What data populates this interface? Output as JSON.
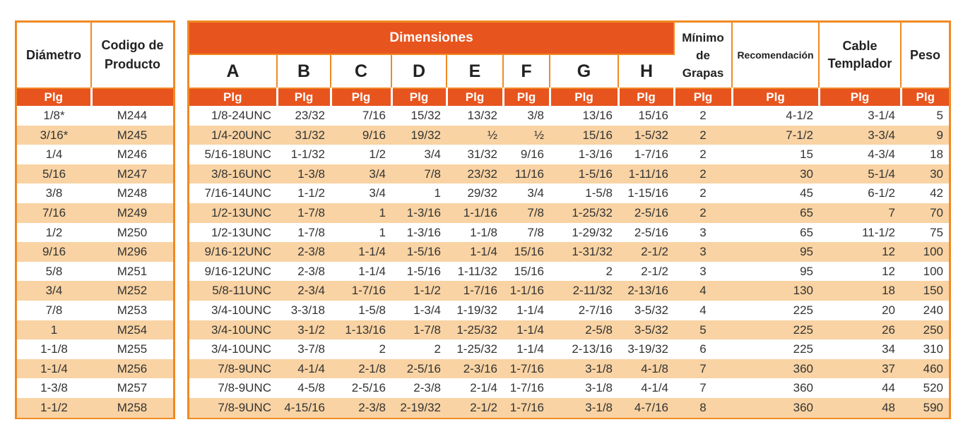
{
  "colors": {
    "header": "#e8541e",
    "border": "#f08a24",
    "alt_row": "#f9d3a3"
  },
  "left": {
    "headers": [
      "Diámetro",
      "Codigo de Producto"
    ],
    "unit_row": [
      "Plg",
      ""
    ],
    "rows": [
      [
        "1/8*",
        "M244"
      ],
      [
        "3/16*",
        "M245"
      ],
      [
        "1/4",
        "M246"
      ],
      [
        "5/16",
        "M247"
      ],
      [
        "3/8",
        "M248"
      ],
      [
        "7/16",
        "M249"
      ],
      [
        "1/2",
        "M250"
      ],
      [
        "9/16",
        "M296"
      ],
      [
        "5/8",
        "M251"
      ],
      [
        "3/4",
        "M252"
      ],
      [
        "7/8",
        "M253"
      ],
      [
        "1",
        "M254"
      ],
      [
        "1-1/8",
        "M255"
      ],
      [
        "1-1/4",
        "M256"
      ],
      [
        "1-3/8",
        "M257"
      ],
      [
        "1-1/2",
        "M258"
      ]
    ]
  },
  "right": {
    "group_header": "Dimensiones",
    "letters": [
      "A",
      "B",
      "C",
      "D",
      "E",
      "F",
      "G",
      "H"
    ],
    "extra_headers": [
      "Mínimo de Grapas",
      "Recomendación",
      "Cable Templador",
      "Peso"
    ],
    "unit_row": [
      "Plg",
      "Plg",
      "Plg",
      "Plg",
      "Plg",
      "Plg",
      "Plg",
      "Plg",
      "Plg",
      "Plg",
      "Plg",
      "Plg"
    ],
    "rows": [
      [
        "1/8-24UNC",
        "23/32",
        "7/16",
        "15/32",
        "13/32",
        "3/8",
        "13/16",
        "15/16",
        "2",
        "4-1/2",
        "3-1/4",
        "5"
      ],
      [
        "1/4-20UNC",
        "31/32",
        "9/16",
        "19/32",
        "½",
        "½",
        "15/16",
        "1-5/32",
        "2",
        "7-1/2",
        "3-3/4",
        "9"
      ],
      [
        "5/16-18UNC",
        "1-1/32",
        "1/2",
        "3/4",
        "31/32",
        "9/16",
        "1-3/16",
        "1-7/16",
        "2",
        "15",
        "4-3/4",
        "18"
      ],
      [
        "3/8-16UNC",
        "1-3/8",
        "3/4",
        "7/8",
        "23/32",
        "11/16",
        "1-5/16",
        "1-11/16",
        "2",
        "30",
        "5-1/4",
        "30"
      ],
      [
        "7/16-14UNC",
        "1-1/2",
        "3/4",
        "1",
        "29/32",
        "3/4",
        "1-5/8",
        "1-15/16",
        "2",
        "45",
        "6-1/2",
        "42"
      ],
      [
        "1/2-13UNC",
        "1-7/8",
        "1",
        "1-3/16",
        "1-1/16",
        "7/8",
        "1-25/32",
        "2-5/16",
        "2",
        "65",
        "7",
        "70"
      ],
      [
        "1/2-13UNC",
        "1-7/8",
        "1",
        "1-3/16",
        "1-1/8",
        "7/8",
        "1-29/32",
        "2-5/16",
        "3",
        "65",
        "11-1/2",
        "75"
      ],
      [
        "9/16-12UNC",
        "2-3/8",
        "1-1/4",
        "1-5/16",
        "1-1/4",
        "15/16",
        "1-31/32",
        "2-1/2",
        "3",
        "95",
        "12",
        "100"
      ],
      [
        "9/16-12UNC",
        "2-3/8",
        "1-1/4",
        "1-5/16",
        "1-11/32",
        "15/16",
        "2",
        "2-1/2",
        "3",
        "95",
        "12",
        "100"
      ],
      [
        "5/8-11UNC",
        "2-3/4",
        "1-7/16",
        "1-1/2",
        "1-7/16",
        "1-1/16",
        "2-11/32",
        "2-13/16",
        "4",
        "130",
        "18",
        "150"
      ],
      [
        "3/4-10UNC",
        "3-3/18",
        "1-5/8",
        "1-3/4",
        "1-19/32",
        "1-1/4",
        "2-7/16",
        "3-5/32",
        "4",
        "225",
        "20",
        "240"
      ],
      [
        "3/4-10UNC",
        "3-1/2",
        "1-13/16",
        "1-7/8",
        "1-25/32",
        "1-1/4",
        "2-5/8",
        "3-5/32",
        "5",
        "225",
        "26",
        "250"
      ],
      [
        "3/4-10UNC",
        "3-7/8",
        "2",
        "2",
        "1-25/32",
        "1-1/4",
        "2-13/16",
        "3-19/32",
        "6",
        "225",
        "34",
        "310"
      ],
      [
        "7/8-9UNC",
        "4-1/4",
        "2-1/8",
        "2-5/16",
        "2-3/16",
        "1-7/16",
        "3-1/8",
        "4-1/8",
        "7",
        "360",
        "37",
        "460"
      ],
      [
        "7/8-9UNC",
        "4-5/8",
        "2-5/16",
        "2-3/8",
        "2-1/4",
        "1-7/16",
        "3-1/8",
        "4-1/4",
        "7",
        "360",
        "44",
        "520"
      ],
      [
        "7/8-9UNC",
        "4-15/16",
        "2-3/8",
        "2-19/32",
        "2-1/2",
        "1-7/16",
        "3-1/8",
        "4-7/16",
        "8",
        "360",
        "48",
        "590"
      ]
    ]
  }
}
